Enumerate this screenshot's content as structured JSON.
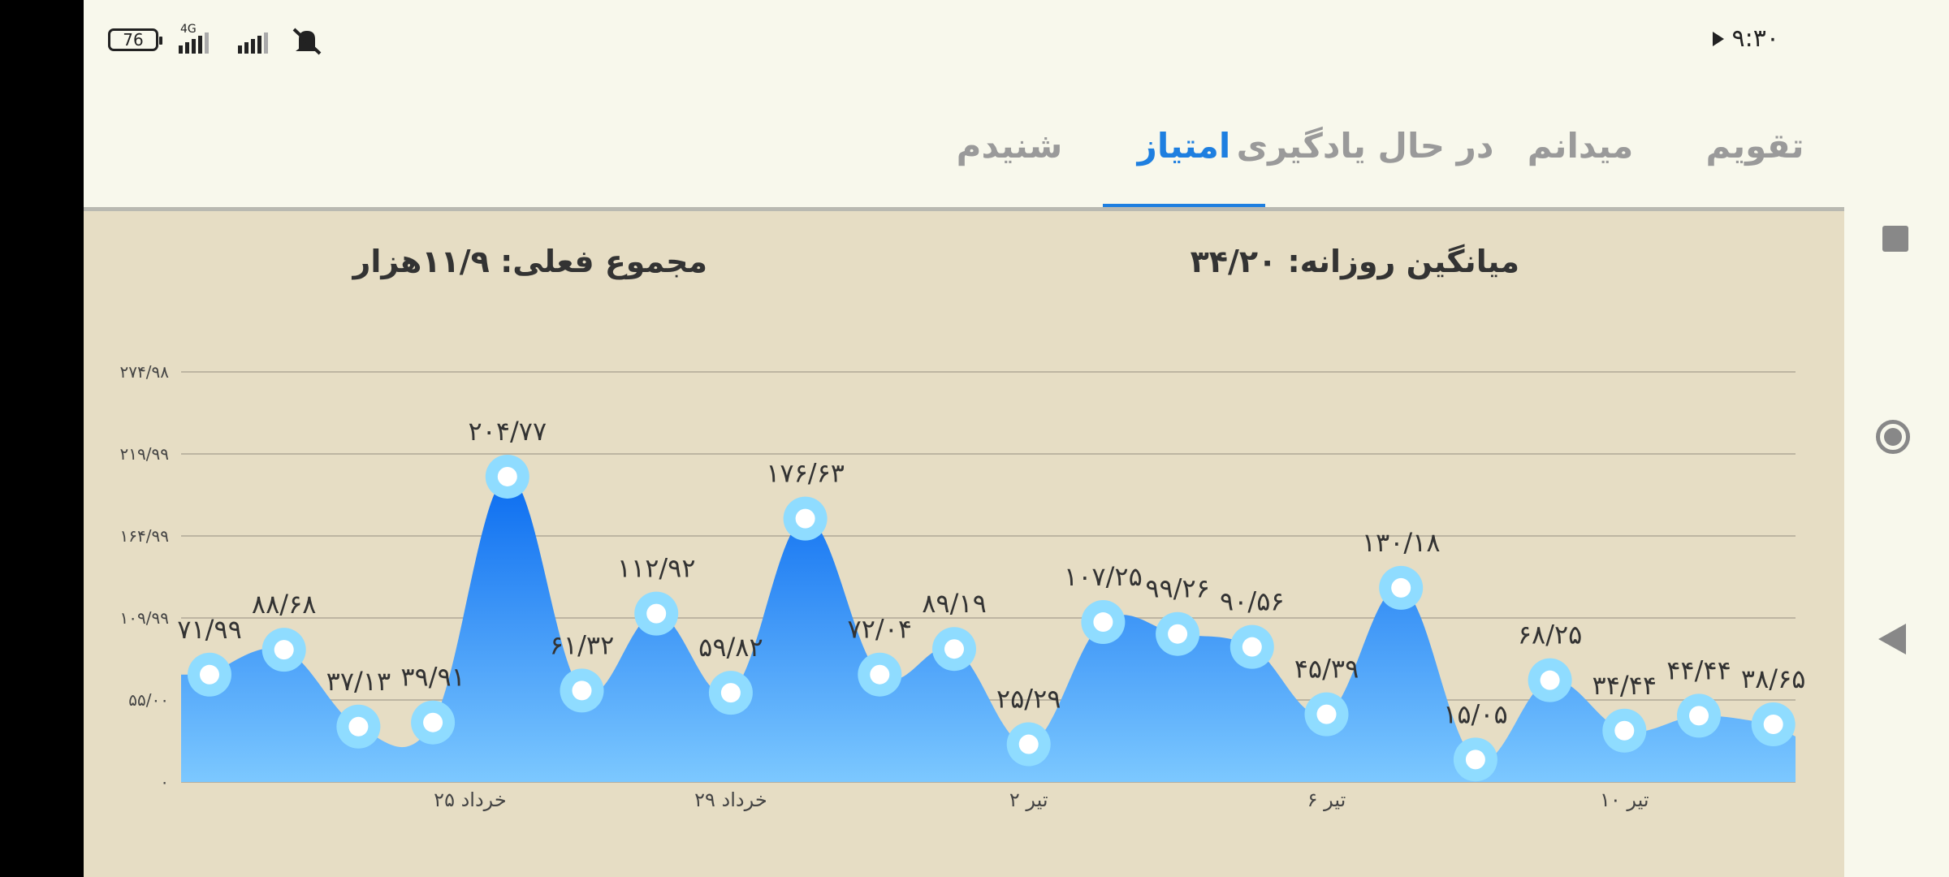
{
  "status_bar": {
    "time": "۹:۳۰",
    "battery": "76",
    "network_label": "4G",
    "icons": [
      "play-icon",
      "battery-icon",
      "signal-icon",
      "signal-icon",
      "mute-icon"
    ]
  },
  "tabs": [
    {
      "label": "تقویم",
      "active": false
    },
    {
      "label": "میدانم",
      "active": false
    },
    {
      "label": "در حال یادگیری",
      "active": false
    },
    {
      "label": "امتیاز",
      "active": true
    },
    {
      "label": "شنیدم",
      "active": false
    }
  ],
  "stats": {
    "daily_average": "میانگین روزانه: ۳۴/۲۰",
    "current_total": "مجموع فعلی: ۱۱/۹هزار"
  },
  "colors": {
    "accent": "#1e7fe0",
    "area_top": "#0a6cf0",
    "area_bottom": "#7cc8ff",
    "point_ring": "#8fdcff",
    "content_bg": "#e6ddc4"
  },
  "navbar": {
    "icons": [
      "recent-apps-icon",
      "home-icon",
      "back-icon"
    ]
  },
  "chart_data": {
    "type": "area",
    "y_ticks": [
      "۰",
      "۵۵/۰۰",
      "۱۰۹/۹۹",
      "۱۶۴/۹۹",
      "۲۱۹/۹۹",
      "۲۷۴/۹۸"
    ],
    "y_tick_values": [
      0,
      55.0,
      109.99,
      164.99,
      219.99,
      274.98
    ],
    "ylim": [
      0,
      274.98
    ],
    "x_labels": [
      "۲۵ خرداد",
      "۲۹ خرداد",
      "۲ تیر",
      "۶ تیر",
      "۱۰ تیر"
    ],
    "x_label_indices": [
      3.5,
      7.0,
      11.0,
      15.0,
      19.0
    ],
    "values": [
      71.99,
      88.68,
      37.13,
      39.91,
      204.77,
      61.32,
      112.92,
      59.82,
      176.63,
      72.04,
      89.19,
      25.29,
      107.25,
      99.26,
      90.56,
      45.39,
      130.18,
      15.05,
      68.25,
      34.44,
      44.44,
      38.65
    ],
    "value_labels": [
      "۷۱/۹۹",
      "۸۸/۶۸",
      "۳۷/۱۳",
      "۳۹/۹۱",
      "۲۰۴/۷۷",
      "۶۱/۳۲",
      "۱۱۲/۹۲",
      "۵۹/۸۲",
      "۱۷۶/۶۳",
      "۷۲/۰۴",
      "۸۹/۱۹",
      "۲۵/۲۹",
      "۱۰۷/۲۵",
      "۹۹/۲۶",
      "۹۰/۵۶",
      "۴۵/۳۹",
      "۱۳۰/۱۸",
      "۱۵/۰۵",
      "۶۸/۲۵",
      "۳۴/۴۴",
      "۴۴/۴۴",
      "۳۸/۶۵"
    ],
    "grid": true
  }
}
